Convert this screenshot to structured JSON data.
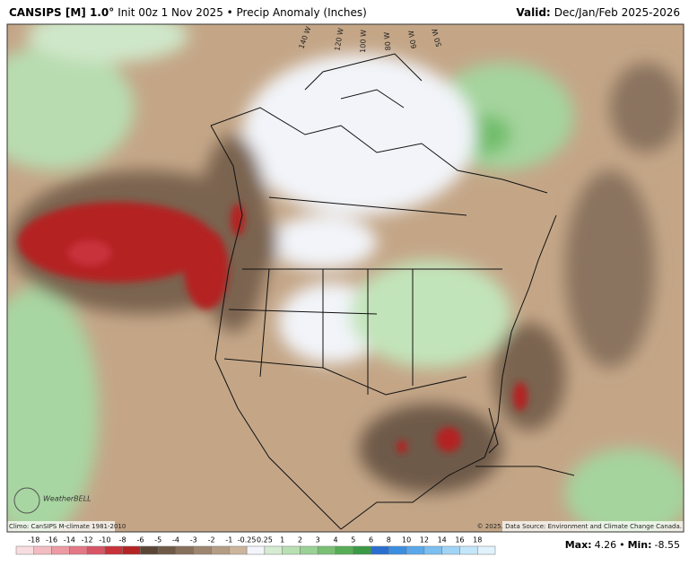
{
  "header": {
    "model": "CANSIPS [M] 1.0°",
    "subtitle": "Init 00z 1 Nov 2025 • Precip Anomaly (Inches)",
    "valid_label": "Valid:",
    "valid_period": "Dec/Jan/Feb 2025-2026"
  },
  "map": {
    "longitude_labels": [
      "140 W",
      "120 W",
      "100 W",
      "80 W",
      "60 W",
      "50 W"
    ],
    "logo": "WeatherBELL",
    "climo_note": "Climo: CanSIPS M-climate 1981-2010",
    "source_note": "© 2025. Data Source: Environment and Climate Change Canada."
  },
  "colorbar": {
    "labels": [
      -18,
      -16,
      -14,
      -12,
      -10,
      -8,
      -6,
      -5,
      -4,
      -3,
      -2,
      -1,
      -0.25,
      0.25,
      1,
      2,
      3,
      4,
      5,
      6,
      8,
      10,
      12,
      14,
      16,
      18
    ],
    "colors": [
      "#f8dde0",
      "#f2bcc2",
      "#ec9aa4",
      "#e47886",
      "#d85566",
      "#c8323a",
      "#b42424",
      "#5b4636",
      "#6f5a48",
      "#86705c",
      "#9d8670",
      "#b49d84",
      "#cbb59c",
      "#f3f5fb",
      "#d5ecd1",
      "#b8e0b2",
      "#9ad194",
      "#79c074",
      "#57ad57",
      "#3b9a46",
      "#2a6fd0",
      "#3b8ee0",
      "#5aa8ea",
      "#7cbff0",
      "#a0d4f6",
      "#c4e6fa",
      "#e0f2fc"
    ]
  },
  "footer": {
    "max_label": "Max:",
    "max_value": "4.26",
    "separator": "•",
    "min_label": "Min:",
    "min_value": "-8.55"
  }
}
